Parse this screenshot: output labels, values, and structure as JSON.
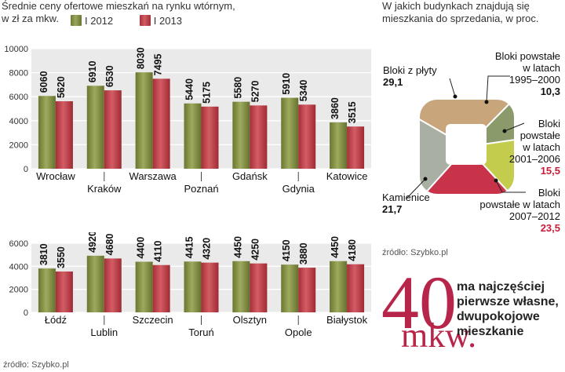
{
  "left": {
    "title_lines": [
      "Średnie ceny ofertowe mieszkań na rynku wtórnym,",
      "w zł za mkw."
    ],
    "legend": [
      {
        "label": "I 2012",
        "color": "#8a9445"
      },
      {
        "label": "I 2013",
        "color": "#c2454e"
      }
    ],
    "source": "źródło: Szybko.pl"
  },
  "chart_data": [
    {
      "type": "bar",
      "categories": [
        "Wrocław",
        "Kraków",
        "Warszawa",
        "Poznań",
        "Gdańsk",
        "Gdynia",
        "Katowice"
      ],
      "series": [
        {
          "name": "I 2012",
          "values": [
            6060,
            6910,
            8030,
            5440,
            5580,
            5910,
            3860
          ]
        },
        {
          "name": "I 2013",
          "values": [
            5620,
            6530,
            7495,
            5175,
            5270,
            5340,
            3515
          ]
        }
      ],
      "ylim": [
        0,
        10000
      ],
      "yticks": [
        "0",
        "2000",
        "4000",
        "6000",
        "8000",
        "10000"
      ],
      "grid": true
    },
    {
      "type": "bar",
      "categories": [
        "Łódź",
        "Lublin",
        "Szczecin",
        "Toruń",
        "Olsztyn",
        "Opole",
        "Białystok"
      ],
      "series": [
        {
          "name": "I 2012",
          "values": [
            3810,
            4920,
            4400,
            4415,
            4450,
            4150,
            4450
          ]
        },
        {
          "name": "I 2013",
          "values": [
            3550,
            4680,
            4110,
            4320,
            4250,
            3880,
            4180
          ]
        }
      ],
      "ylim": [
        0,
        6000
      ],
      "yticks": [
        "0",
        "2000",
        "4000",
        "6000"
      ],
      "grid": true
    },
    {
      "type": "pie",
      "title_lines": [
        "W jakich budynkach znajdują się",
        "mieszkania do sprzedania, w proc."
      ],
      "segments": [
        {
          "label_lines": [
            "Bloki z płyty"
          ],
          "value": 29.1,
          "value_text": "29,1",
          "color": "#c8a57a"
        },
        {
          "label_lines": [
            "Bloki powstałe",
            "w latach",
            "1995–2000"
          ],
          "value": 10.3,
          "value_text": "10,3",
          "color": "#8a9a6b"
        },
        {
          "label_lines": [
            "Bloki",
            "powstałe",
            "w latach",
            "2001–2006"
          ],
          "value": 15.5,
          "value_text": "15,5",
          "color": "#c4cc4e"
        },
        {
          "label_lines": [
            "Bloki",
            "powstałe w latach",
            "2007–2012"
          ],
          "value": 23.5,
          "value_text": "23,5",
          "color": "#c9334a"
        },
        {
          "label_lines": [
            "Kamienice"
          ],
          "value": 21.7,
          "value_text": "21,7",
          "color": "#a9afa2"
        }
      ]
    }
  ],
  "right": {
    "source": "źródło: Szybko.pl",
    "big_number": "40",
    "unit": "mkw.",
    "fact_lines": [
      "ma najczęściej",
      "pierwsze własne,",
      "dwupokojowe",
      "mieszkanie"
    ]
  }
}
